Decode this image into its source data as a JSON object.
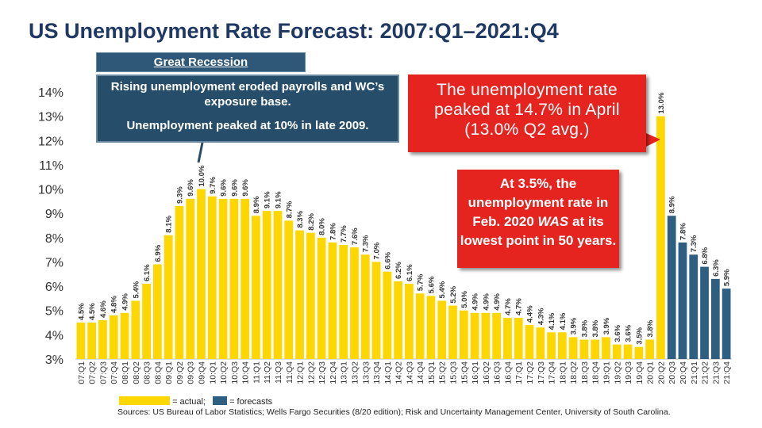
{
  "title": "US Unemployment Rate Forecast: 2007:Q1–2021:Q4",
  "callouts": {
    "recession_header": "Great Recession",
    "recession_text1": "Rising unemployment eroded payrolls and WC’s exposure base.",
    "recession_text2": "Unemployment peaked at 10% in late 2009.",
    "peak_text": "The unemployment rate peaked at 14.7% in April (13.0% Q2 avg.)",
    "low_text_prefix": "At 3.5%, the unemployment rate in Feb. 2020 ",
    "low_text_emph": "WAS",
    "low_text_suffix": " at its lowest point in 50 years."
  },
  "legend": {
    "actual_label": "= actual;",
    "forecast_label": "= forecasts"
  },
  "source": "Sources: US Bureau of Labor Statistics; Wells Fargo Securities (8/20 edition); Risk and Uncertainty Management Center, University of South Carolina.",
  "colors": {
    "actual": "#ffd700",
    "forecast": "#2f5f80",
    "title": "#1f3864",
    "callout_dark": "#264e6b",
    "callout_red": "#e52420"
  },
  "chart_data": {
    "type": "bar",
    "title": "US Unemployment Rate Forecast: 2007:Q1–2021:Q4",
    "ylim": [
      3,
      14
    ],
    "yticks": [
      "3%",
      "4%",
      "5%",
      "6%",
      "7%",
      "8%",
      "9%",
      "10%",
      "11%",
      "12%",
      "13%",
      "14%"
    ],
    "categories": [
      "07:Q1",
      "07:Q2",
      "07:Q3",
      "07:Q4",
      "08:Q1",
      "08:Q2",
      "08:Q3",
      "08:Q4",
      "09:Q1",
      "09:Q2",
      "09:Q3",
      "09:Q4",
      "10:Q1",
      "10:Q2",
      "10:Q3",
      "10:Q4",
      "11:Q1",
      "11:Q2",
      "11:Q3",
      "11:Q4",
      "12:Q1",
      "12:Q2",
      "12:Q3",
      "12:Q4",
      "13:Q1",
      "13:Q2",
      "13:Q3",
      "13:Q4",
      "14:Q1",
      "14:Q2",
      "14:Q3",
      "14:Q4",
      "15:Q1",
      "15:Q2",
      "15:Q3",
      "15:Q4",
      "16:Q1",
      "16:Q2",
      "16:Q3",
      "16:Q4",
      "17:Q1",
      "17:Q2",
      "17:Q3",
      "17:Q4",
      "18:Q1",
      "18:Q2",
      "18:Q3",
      "18:Q4",
      "19:Q1",
      "19:Q2",
      "19:Q3",
      "19:Q4",
      "20:Q1",
      "20:Q2",
      "20:Q3",
      "20:Q4",
      "21:Q1",
      "21:Q2",
      "21:Q3",
      "21:Q4"
    ],
    "values": [
      4.5,
      4.5,
      4.6,
      4.8,
      4.9,
      5.4,
      6.1,
      6.9,
      8.1,
      9.3,
      9.6,
      10.0,
      9.7,
      9.6,
      9.6,
      9.6,
      8.9,
      9.1,
      9.1,
      8.7,
      8.3,
      8.2,
      8.0,
      7.8,
      7.7,
      7.6,
      7.3,
      7.0,
      6.6,
      6.2,
      6.1,
      5.7,
      5.6,
      5.4,
      5.2,
      5.0,
      4.9,
      4.9,
      4.9,
      4.7,
      4.7,
      4.4,
      4.3,
      4.1,
      4.1,
      3.9,
      3.8,
      3.8,
      3.9,
      3.6,
      3.6,
      3.5,
      3.8,
      13.0,
      8.9,
      7.8,
      7.3,
      6.8,
      6.3,
      5.9
    ],
    "labels": [
      "4.5%",
      "4.5%",
      "4.6%",
      "4.8%",
      "4.9%",
      "5.4%",
      "6.1%",
      "6.9%",
      "8.1%",
      "9.3%",
      "9.6%",
      "10.0%",
      "9.7%",
      "9.6%",
      "9.6%",
      "9.6%",
      "8.9%",
      "9.1%",
      "9.1%",
      "8.7%",
      "8.3%",
      "8.2%",
      "8.0%",
      "7.8%",
      "7.7%",
      "7.6%",
      "7.3%",
      "7.0%",
      "6.6%",
      "6.2%",
      "6.1%",
      "5.7%",
      "5.6%",
      "5.4%",
      "5.2%",
      "5.0%",
      "4.9%",
      "4.9%",
      "4.9%",
      "4.7%",
      "4.7%",
      "4.4%",
      "4.3%",
      "4.1%",
      "4.1%",
      "3.9%",
      "3.8%",
      "3.8%",
      "3.9%",
      "3.6%",
      "3.6%",
      "3.5%",
      "3.8%",
      "13.0%",
      "8.9%",
      "7.8%",
      "7.3%",
      "6.8%",
      "6.3%",
      "5.9%"
    ],
    "kind": [
      "actual",
      "actual",
      "actual",
      "actual",
      "actual",
      "actual",
      "actual",
      "actual",
      "actual",
      "actual",
      "actual",
      "actual",
      "actual",
      "actual",
      "actual",
      "actual",
      "actual",
      "actual",
      "actual",
      "actual",
      "actual",
      "actual",
      "actual",
      "actual",
      "actual",
      "actual",
      "actual",
      "actual",
      "actual",
      "actual",
      "actual",
      "actual",
      "actual",
      "actual",
      "actual",
      "actual",
      "actual",
      "actual",
      "actual",
      "actual",
      "actual",
      "actual",
      "actual",
      "actual",
      "actual",
      "actual",
      "actual",
      "actual",
      "actual",
      "actual",
      "actual",
      "actual",
      "actual",
      "actual",
      "forecast",
      "forecast",
      "forecast",
      "forecast",
      "forecast",
      "forecast"
    ]
  }
}
